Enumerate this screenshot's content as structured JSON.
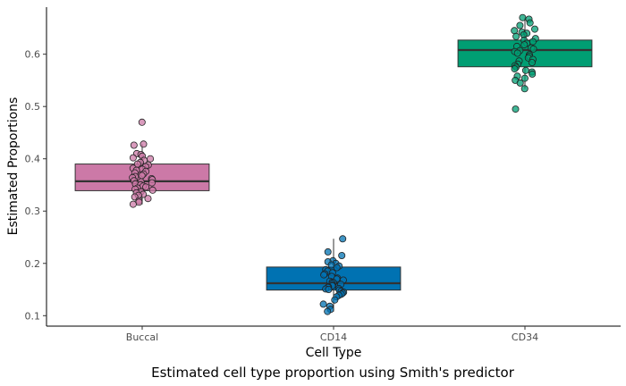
{
  "chart_data": {
    "type": "box",
    "xlabel": "Cell Type",
    "ylabel": "Estimated Proportions",
    "caption": "Estimated cell type proportion using Smith's predictor",
    "ylim": [
      0.08,
      0.69
    ],
    "yticks": [
      0.1,
      0.2,
      0.3,
      0.4,
      0.5,
      0.6
    ],
    "grid": false,
    "legend": "none",
    "categories": [
      "Buccal",
      "CD14",
      "CD34"
    ],
    "boxes": [
      {
        "category": "Buccal",
        "color": "#CC79A7",
        "q1": 0.339,
        "median": 0.357,
        "q3": 0.39,
        "whisker_low": 0.313,
        "whisker_high": 0.428,
        "points": [
          0.47,
          0.428,
          0.426,
          0.41,
          0.408,
          0.405,
          0.402,
          0.4,
          0.397,
          0.393,
          0.39,
          0.388,
          0.385,
          0.382,
          0.38,
          0.378,
          0.376,
          0.373,
          0.371,
          0.368,
          0.366,
          0.364,
          0.362,
          0.36,
          0.358,
          0.356,
          0.354,
          0.352,
          0.35,
          0.348,
          0.346,
          0.344,
          0.342,
          0.34,
          0.337,
          0.335,
          0.332,
          0.33,
          0.327,
          0.324,
          0.32,
          0.317,
          0.313
        ]
      },
      {
        "category": "CD14",
        "color": "#0072B2",
        "q1": 0.149,
        "median": 0.162,
        "q3": 0.193,
        "whisker_low": 0.108,
        "whisker_high": 0.247,
        "points": [
          0.247,
          0.222,
          0.215,
          0.205,
          0.203,
          0.2,
          0.197,
          0.195,
          0.192,
          0.188,
          0.185,
          0.182,
          0.18,
          0.178,
          0.175,
          0.172,
          0.17,
          0.168,
          0.166,
          0.164,
          0.163,
          0.161,
          0.16,
          0.158,
          0.157,
          0.155,
          0.154,
          0.152,
          0.151,
          0.15,
          0.149,
          0.147,
          0.145,
          0.143,
          0.141,
          0.139,
          0.136,
          0.13,
          0.122,
          0.118,
          0.112,
          0.108
        ]
      },
      {
        "category": "CD34",
        "color": "#009E73",
        "q1": 0.576,
        "median": 0.608,
        "q3": 0.627,
        "whisker_low": 0.534,
        "whisker_high": 0.67,
        "points": [
          0.67,
          0.667,
          0.66,
          0.655,
          0.648,
          0.645,
          0.642,
          0.64,
          0.637,
          0.634,
          0.63,
          0.627,
          0.624,
          0.621,
          0.618,
          0.615,
          0.612,
          0.61,
          0.607,
          0.605,
          0.602,
          0.599,
          0.596,
          0.593,
          0.59,
          0.587,
          0.584,
          0.581,
          0.578,
          0.575,
          0.572,
          0.569,
          0.566,
          0.562,
          0.558,
          0.554,
          0.55,
          0.545,
          0.534,
          0.495
        ]
      }
    ]
  }
}
